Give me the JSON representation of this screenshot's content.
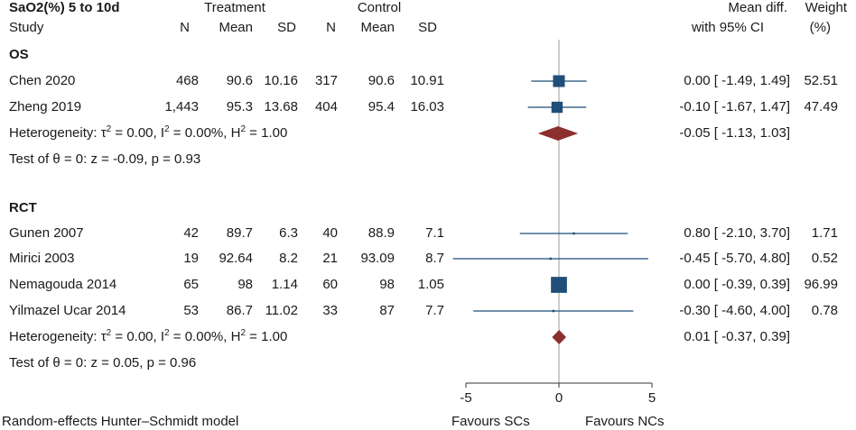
{
  "header": {
    "outcome": "SaO2(%) 5 to 10d",
    "treatment": "Treatment",
    "control": "Control",
    "mean_diff": "Mean diff.",
    "ci_label": "with 95% CI",
    "weight": "Weight",
    "weight_unit": "(%)",
    "study": "Study",
    "n": "N",
    "mean": "Mean",
    "sd": "SD"
  },
  "groups": [
    {
      "name": "OS",
      "rows": [
        {
          "study": "Chen 2020",
          "tn": "468",
          "tmean": "90.6",
          "tsd": "10.16",
          "cn": "317",
          "cmean": "90.6",
          "csd": "10.91",
          "ci": "0.00 [ -1.49,  1.49]",
          "weight": "52.51"
        },
        {
          "study": "Zheng 2019",
          "tn": "1,443",
          "tmean": "95.3",
          "tsd": "13.68",
          "cn": "404",
          "cmean": "95.4",
          "csd": "16.03",
          "ci": "-0.10 [ -1.67,  1.47]",
          "weight": "47.49"
        }
      ],
      "heterogeneity": {
        "tau2": "0.00",
        "i2": "0.00%",
        "h2": "1.00"
      },
      "pooled_ci": "-0.05 [ -1.13,  1.03]",
      "test": "Test of θ = 0: z = -0.09, p = 0.93"
    },
    {
      "name": "RCT",
      "rows": [
        {
          "study": "Gunen 2007",
          "tn": "42",
          "tmean": "89.7",
          "tsd": "6.3",
          "cn": "40",
          "cmean": "88.9",
          "csd": "7.1",
          "ci": "0.80 [ -2.10,  3.70]",
          "weight": "1.71"
        },
        {
          "study": "Mirici 2003",
          "tn": "19",
          "tmean": "92.64",
          "tsd": "8.2",
          "cn": "21",
          "cmean": "93.09",
          "csd": "8.7",
          "ci": "-0.45 [ -5.70,  4.80]",
          "weight": "0.52"
        },
        {
          "study": "Nemagouda 2014",
          "tn": "65",
          "tmean": "98",
          "tsd": "1.14",
          "cn": "60",
          "cmean": "98",
          "csd": "1.05",
          "ci": "0.00 [ -0.39,  0.39]",
          "weight": "96.99"
        },
        {
          "study": "Yilmazel Ucar 2014",
          "tn": "53",
          "tmean": "86.7",
          "tsd": "11.02",
          "cn": "33",
          "cmean": "87",
          "csd": "7.7",
          "ci": "-0.30 [ -4.60,  4.00]",
          "weight": "0.78"
        }
      ],
      "heterogeneity": {
        "tau2": "0.00",
        "i2": "0.00%",
        "h2": "1.00"
      },
      "pooled_ci": "0.01 [ -0.37,  0.39]",
      "test": "Test of θ = 0: z = 0.05, p = 0.96"
    }
  ],
  "footer": {
    "model": "Random-effects Hunter–Schmidt model",
    "favours_left": "Favours SCs",
    "favours_right": "Favours NCs"
  },
  "colors": {
    "marker": "#1f4e79",
    "diamond": "#8b2f2f",
    "axis": "#333333",
    "refline": "#9a9a9a"
  },
  "chart_data": {
    "type": "forest",
    "xlim": [
      -5,
      5
    ],
    "xticks": [
      -5,
      0,
      5
    ],
    "xtick_labels": [
      "-5",
      "0",
      "5"
    ],
    "studies": [
      {
        "group": "OS",
        "name": "Chen 2020",
        "effect": 0.0,
        "lower": -1.49,
        "upper": 1.49,
        "weight": 52.51
      },
      {
        "group": "OS",
        "name": "Zheng 2019",
        "effect": -0.1,
        "lower": -1.67,
        "upper": 1.47,
        "weight": 47.49
      },
      {
        "group": "RCT",
        "name": "Gunen 2007",
        "effect": 0.8,
        "lower": -2.1,
        "upper": 3.7,
        "weight": 1.71
      },
      {
        "group": "RCT",
        "name": "Mirici 2003",
        "effect": -0.45,
        "lower": -5.7,
        "upper": 4.8,
        "weight": 0.52
      },
      {
        "group": "RCT",
        "name": "Nemagouda 2014",
        "effect": 0.0,
        "lower": -0.39,
        "upper": 0.39,
        "weight": 96.99
      },
      {
        "group": "RCT",
        "name": "Yilmazel Ucar 2014",
        "effect": -0.3,
        "lower": -4.6,
        "upper": 4.0,
        "weight": 0.78
      }
    ],
    "pooled": [
      {
        "group": "OS",
        "effect": -0.05,
        "lower": -1.13,
        "upper": 1.03
      },
      {
        "group": "RCT",
        "effect": 0.01,
        "lower": -0.37,
        "upper": 0.39
      }
    ]
  }
}
